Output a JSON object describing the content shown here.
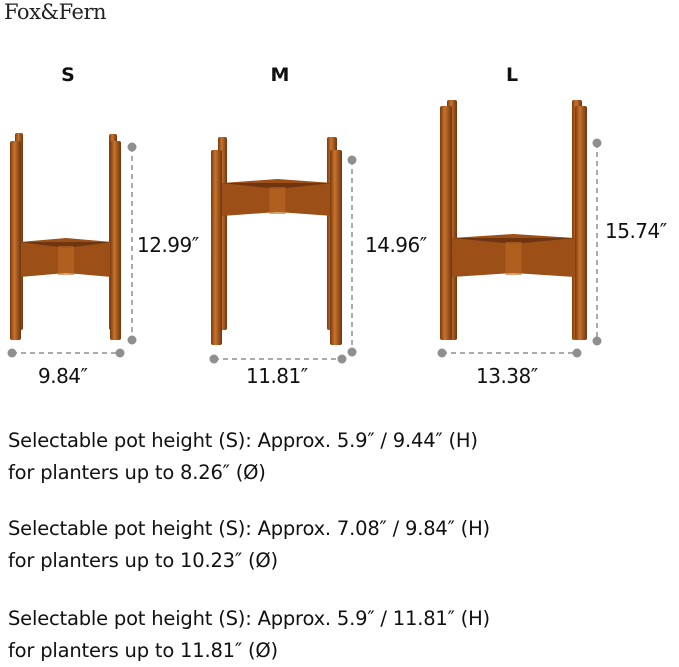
{
  "brand": "Fox&Fern",
  "colors": {
    "wood": "#9c4f17",
    "wood_light": "#c06a25",
    "wood_dark": "#6e3510",
    "dimension_line": "#8f8f8f"
  },
  "stands": [
    {
      "size": "S",
      "height": "12.99″",
      "width": "9.84″"
    },
    {
      "size": "M",
      "height": "14.96″",
      "width": "11.81″"
    },
    {
      "size": "L",
      "height": "15.74″",
      "width": "13.38″"
    }
  ],
  "specs": [
    {
      "line1": "Selectable pot height (S): Approx. 5.9″ / 9.44″ (H)",
      "line2": "for planters up to 8.26″ (Ø)"
    },
    {
      "line1": "Selectable pot height (S): Approx. 7.08″ / 9.84″ (H)",
      "line2": "for planters up to 10.23″ (Ø)"
    },
    {
      "line1": "Selectable pot height (S): Approx. 5.9″ / 11.81″ (H)",
      "line2": "for planters up to 11.81″ (Ø)"
    }
  ]
}
